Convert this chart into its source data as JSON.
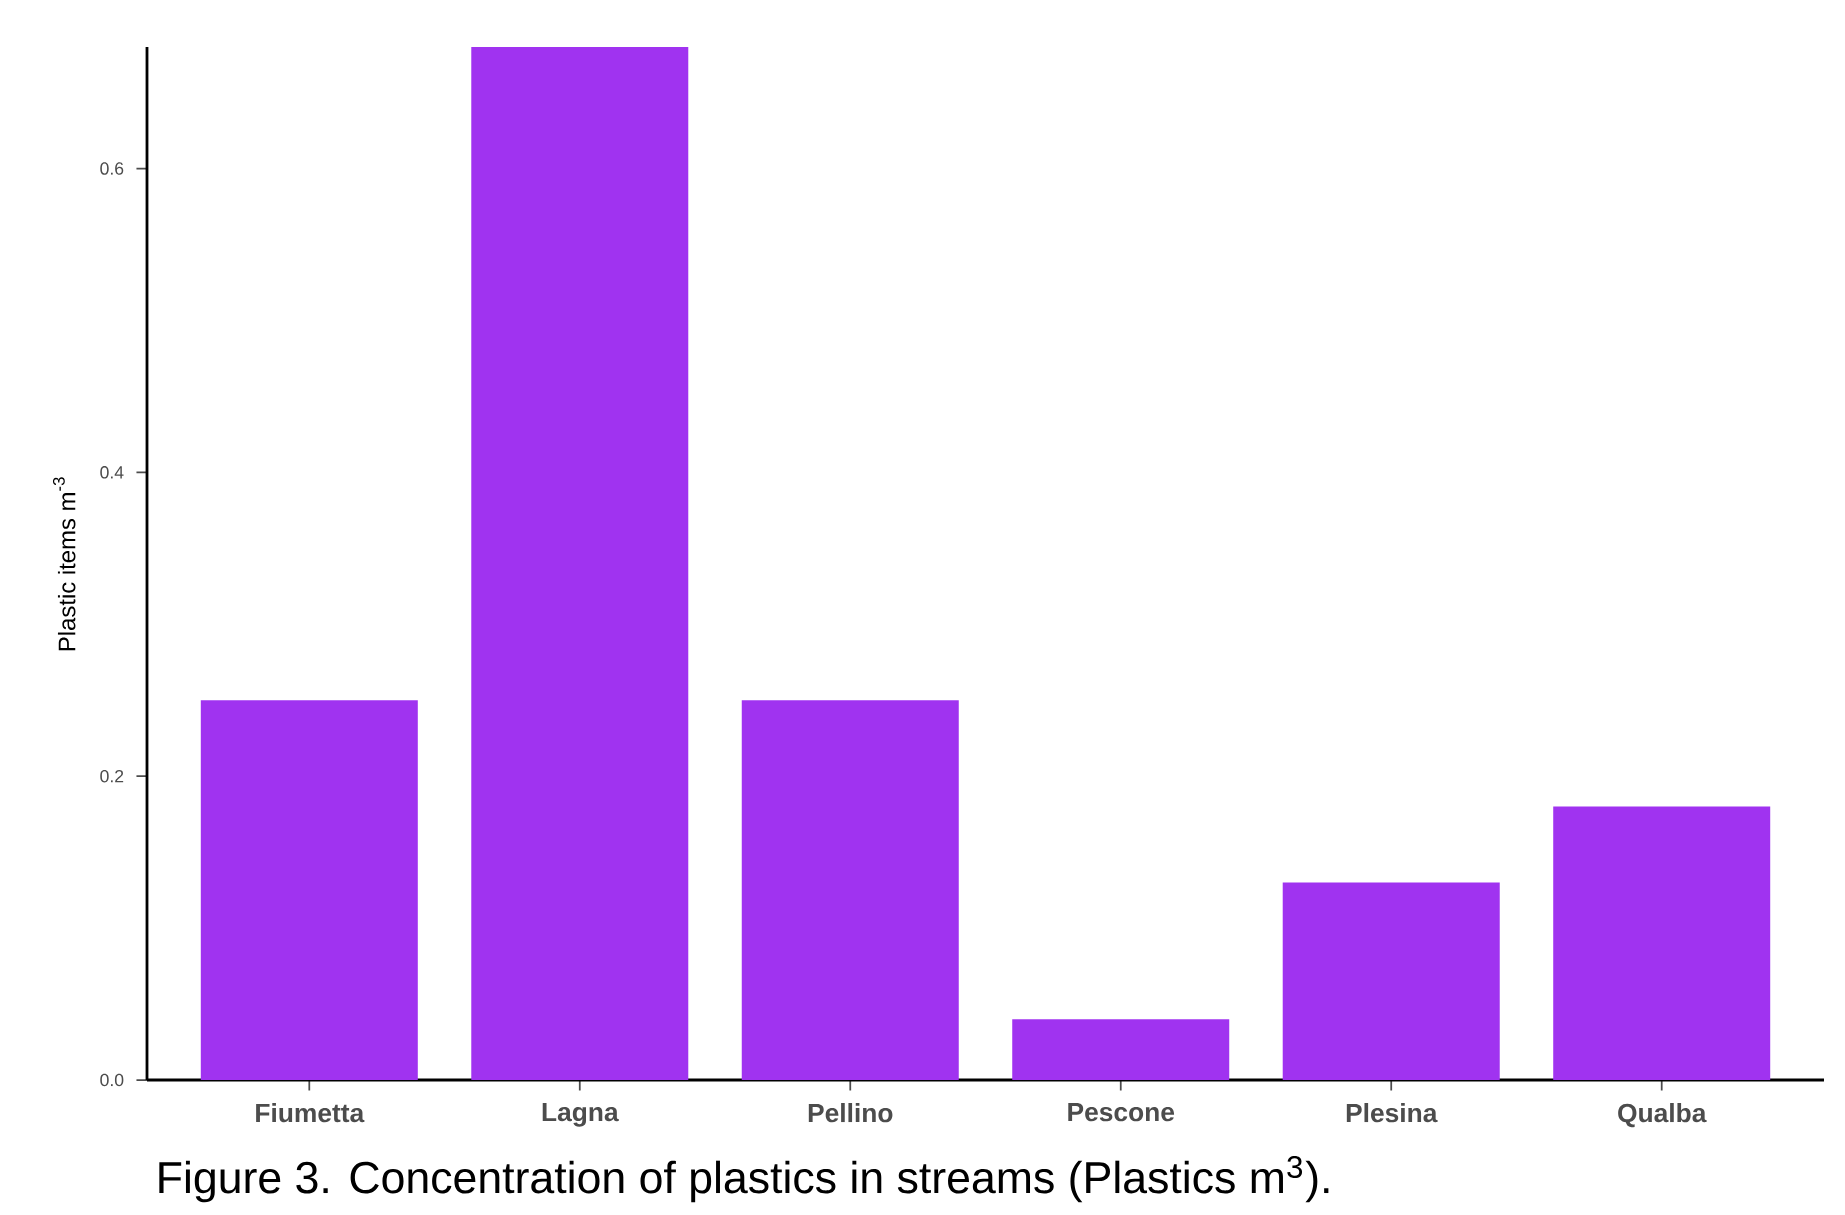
{
  "chart_data": {
    "type": "bar",
    "categories": [
      "Fiumetta",
      "Lagna",
      "Pellino",
      "Pescone",
      "Plesina",
      "Qualba"
    ],
    "values": [
      0.25,
      0.68,
      0.25,
      0.04,
      0.13,
      0.18
    ],
    "color": "#a033f0",
    "ylabel": "Plastic items m$^{-3}$",
    "ylim": [
      0,
      0.68
    ],
    "yticks": [
      {
        "value": 0,
        "label": "0.0"
      },
      {
        "value": 0.2,
        "label": "0.2"
      },
      {
        "value": 0.4,
        "label": "0.4"
      },
      {
        "value": 0.6,
        "label": "0.6"
      }
    ],
    "annotations": [
      "Figure 3. Concentration of plastics in streams (Plastics m$^{3}$)."
    ]
  }
}
